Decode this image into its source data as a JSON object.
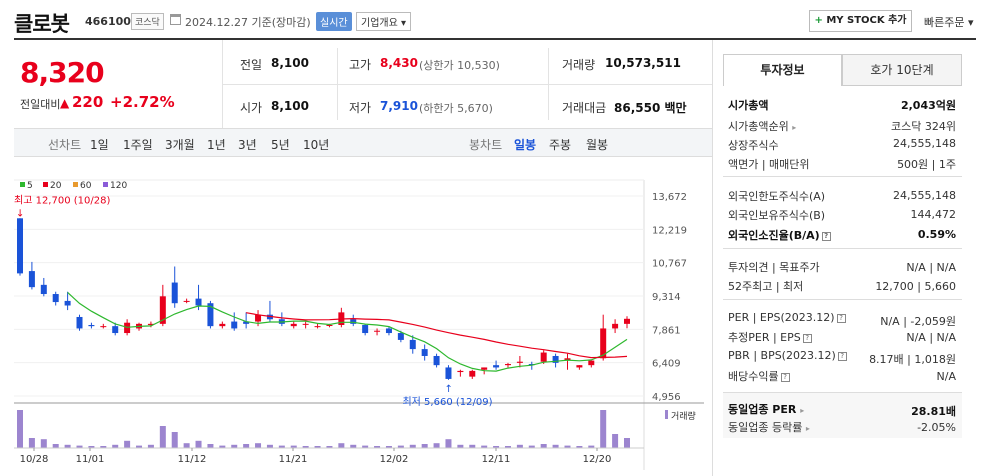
{
  "header": {
    "name": "클로봇",
    "code": "466100",
    "market": "코스닥",
    "date_text": "2024.12.27 기준(장마감)",
    "realtime": "실시간",
    "overview": "기업개요 ▾",
    "mystock": "MY STOCK 추가",
    "mystock_plus": "+",
    "quick": "빠른주문 ▾"
  },
  "price": {
    "current": "8,320",
    "change_label": "전일대비",
    "change_arrow": "▲",
    "change": "220",
    "change_pct": "+2.72%"
  },
  "summary": {
    "prev": {
      "label": "전일",
      "value": "8,100"
    },
    "high": {
      "label": "고가",
      "value": "8,430",
      "sub": "(상한가 10,530)"
    },
    "volume": {
      "label": "거래량",
      "value": "10,573,511"
    },
    "open": {
      "label": "시가",
      "value": "8,100"
    },
    "low": {
      "label": "저가",
      "value": "7,910",
      "sub": "(하한가 5,670)"
    },
    "amount": {
      "label": "거래대금",
      "value": "86,550 백만"
    }
  },
  "period": {
    "line_label": "선차트",
    "line_opts": [
      "1일",
      "1주일",
      "3개월",
      "1년",
      "3년",
      "5년",
      "10년"
    ],
    "candle_label": "봉차트",
    "candle_opts": [
      "일봉",
      "주봉",
      "월봉"
    ],
    "selected": "일봉"
  },
  "chart_data": {
    "type": "candlestick",
    "legend": [
      {
        "name": "5",
        "color": "#2eb82e"
      },
      {
        "name": "20",
        "color": "#e8001c"
      },
      {
        "name": "60",
        "color": "#e89a2e"
      },
      {
        "name": "120",
        "color": "#8a5bd8"
      }
    ],
    "yticks": [
      "13,672",
      "12,219",
      "10,767",
      "9,314",
      "7,861",
      "6,409",
      "4,956"
    ],
    "ylim": [
      4956,
      13672
    ],
    "xticks": [
      "10/28",
      "11/01",
      "11/12",
      "11/21",
      "12/02",
      "12/11",
      "12/20"
    ],
    "max_label": "최고 12,700 (10/28)",
    "min_label": "최저 5,660 (12/09)",
    "volume_label": "거래량",
    "ma5_color": "#2eb82e",
    "ma20_color": "#e8001c",
    "candles": [
      [
        12700,
        12700,
        10200,
        10300
      ],
      [
        10400,
        10800,
        9600,
        9700
      ],
      [
        9800,
        10100,
        9300,
        9400
      ],
      [
        9400,
        9500,
        8900,
        9050
      ],
      [
        9100,
        9500,
        8700,
        8900
      ],
      [
        8400,
        8500,
        7800,
        7900
      ],
      [
        8050,
        8150,
        7900,
        8000
      ],
      [
        8000,
        8100,
        7900,
        8000
      ],
      [
        8000,
        8150,
        7600,
        7700
      ],
      [
        7700,
        8300,
        7600,
        8150
      ],
      [
        7900,
        8150,
        7800,
        8100
      ],
      [
        8050,
        8200,
        7950,
        8100
      ],
      [
        8100,
        9800,
        8000,
        9300
      ],
      [
        9900,
        10600,
        8800,
        9000
      ],
      [
        9100,
        9200,
        9000,
        9100
      ],
      [
        9200,
        9800,
        8700,
        8900
      ],
      [
        9000,
        9100,
        7900,
        8000
      ],
      [
        8000,
        8200,
        7900,
        8100
      ],
      [
        8200,
        8600,
        7800,
        7900
      ],
      [
        8200,
        8600,
        7900,
        8100
      ],
      [
        8200,
        8700,
        8000,
        8500
      ],
      [
        8500,
        9100,
        8200,
        8300
      ],
      [
        8300,
        8600,
        8000,
        8100
      ],
      [
        8000,
        8200,
        7900,
        8100
      ],
      [
        8100,
        8200,
        7900,
        8100
      ],
      [
        8000,
        8100,
        7900,
        8000
      ],
      [
        8050,
        8100,
        7950,
        8050
      ],
      [
        8050,
        8800,
        7950,
        8600
      ],
      [
        8300,
        8500,
        8000,
        8100
      ],
      [
        8050,
        8100,
        7600,
        7700
      ],
      [
        7800,
        7900,
        7600,
        7800
      ],
      [
        7900,
        8000,
        7600,
        7700
      ],
      [
        7700,
        7800,
        7300,
        7400
      ],
      [
        7400,
        7600,
        6800,
        7000
      ],
      [
        7000,
        7200,
        6500,
        6700
      ],
      [
        6700,
        6800,
        6200,
        6300
      ],
      [
        6200,
        6300,
        5660,
        5700
      ],
      [
        6000,
        6100,
        5800,
        6050
      ],
      [
        5800,
        6100,
        5700,
        6050
      ],
      [
        6100,
        6200,
        5900,
        6200
      ],
      [
        6300,
        6500,
        6100,
        6200
      ],
      [
        6300,
        6400,
        6200,
        6350
      ],
      [
        6400,
        6700,
        6200,
        6450
      ],
      [
        6350,
        6450,
        6100,
        6300
      ],
      [
        6450,
        6950,
        6350,
        6850
      ],
      [
        6700,
        6800,
        6200,
        6400
      ],
      [
        6500,
        6800,
        6100,
        6600
      ],
      [
        6200,
        6300,
        6100,
        6300
      ],
      [
        6300,
        6500,
        6200,
        6500
      ],
      [
        6600,
        8500,
        6500,
        7900
      ],
      [
        7900,
        8300,
        7700,
        8100
      ],
      [
        8100,
        8430,
        7910,
        8320
      ]
    ],
    "volumes": [
      95,
      25,
      22,
      10,
      8,
      6,
      5,
      5,
      8,
      18,
      6,
      8,
      55,
      40,
      12,
      18,
      10,
      6,
      8,
      10,
      12,
      8,
      6,
      6,
      5,
      5,
      5,
      12,
      8,
      6,
      5,
      5,
      6,
      8,
      10,
      12,
      22,
      8,
      8,
      6,
      5,
      5,
      8,
      6,
      10,
      8,
      6,
      5,
      6,
      95,
      35,
      25
    ]
  },
  "invest": {
    "tab1": "투자정보",
    "tab2": "호가 10단계",
    "mcap": {
      "label": "시가총액",
      "value": "2,043억원"
    },
    "mcap_rank": {
      "label": "시가총액순위",
      "value": "코스닥 324위"
    },
    "shares": {
      "label": "상장주식수",
      "value": "24,555,148"
    },
    "par": {
      "label": "액면가 | 매매단위",
      "value": "500원 | 1주"
    },
    "foreign_limit": {
      "label": "외국인한도주식수(A)",
      "value": "24,555,148"
    },
    "foreign_hold": {
      "label": "외국인보유주식수(B)",
      "value": "144,472"
    },
    "foreign_ratio": {
      "label": "외국인소진율(B/A)",
      "value": "0.59%"
    },
    "opinion": {
      "label": "투자의견 | 목표주가",
      "value": "N/A | N/A"
    },
    "w52": {
      "label": "52주최고 | 최저",
      "value": "12,700 | 5,660"
    },
    "per": {
      "label": "PER | EPS(2023.12)",
      "value": "N/A | -2,059원"
    },
    "est_per": {
      "label": "추정PER | EPS",
      "value": "N/A | N/A"
    },
    "pbr": {
      "label": "PBR | BPS(2023.12)",
      "value": "8.17배 | 1,018원"
    },
    "div": {
      "label": "배당수익률",
      "value": "N/A"
    },
    "ind_per": {
      "label": "동일업종 PER",
      "value": "28.81배"
    },
    "ind_chg": {
      "label": "동일업종 등락률",
      "value": "-2.05%"
    }
  }
}
